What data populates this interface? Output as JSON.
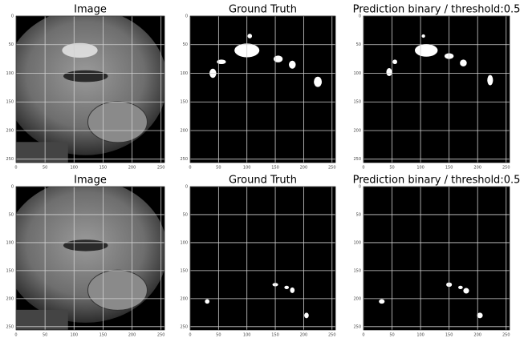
{
  "chart_data": [
    {
      "type": "image",
      "title": "Image",
      "xlim": [
        0,
        256
      ],
      "ylim": [
        256,
        0
      ],
      "xticks": [
        0,
        50,
        100,
        150,
        200,
        250
      ],
      "yticks": [
        0,
        50,
        100,
        150,
        200,
        250
      ],
      "grid": true
    },
    {
      "type": "mask",
      "title": "Ground Truth",
      "xlim": [
        0,
        256
      ],
      "ylim": [
        256,
        0
      ],
      "xticks": [
        0,
        50,
        100,
        150,
        200,
        250
      ],
      "yticks": [
        0,
        50,
        100,
        150,
        200,
        250
      ],
      "grid": true
    },
    {
      "type": "mask",
      "title": "Prediction binary / threshold:0.5",
      "xlim": [
        0,
        256
      ],
      "ylim": [
        256,
        0
      ],
      "xticks": [
        0,
        50,
        100,
        150,
        200,
        250
      ],
      "yticks": [
        0,
        50,
        100,
        150,
        200,
        250
      ],
      "grid": true
    },
    {
      "type": "image",
      "title": "Image",
      "xlim": [
        0,
        256
      ],
      "ylim": [
        256,
        0
      ],
      "xticks": [
        0,
        50,
        100,
        150,
        200,
        250
      ],
      "yticks": [
        0,
        50,
        100,
        150,
        200,
        250
      ],
      "grid": true
    },
    {
      "type": "mask",
      "title": "Ground Truth",
      "xlim": [
        0,
        256
      ],
      "ylim": [
        256,
        0
      ],
      "xticks": [
        0,
        50,
        100,
        150,
        200,
        250
      ],
      "yticks": [
        0,
        50,
        100,
        150,
        200,
        250
      ],
      "grid": true
    },
    {
      "type": "mask",
      "title": "Prediction binary / threshold:0.5",
      "xlim": [
        0,
        256
      ],
      "ylim": [
        256,
        0
      ],
      "xticks": [
        0,
        50,
        100,
        150,
        200,
        250
      ],
      "yticks": [
        0,
        50,
        100,
        150,
        200,
        250
      ],
      "grid": true
    }
  ]
}
